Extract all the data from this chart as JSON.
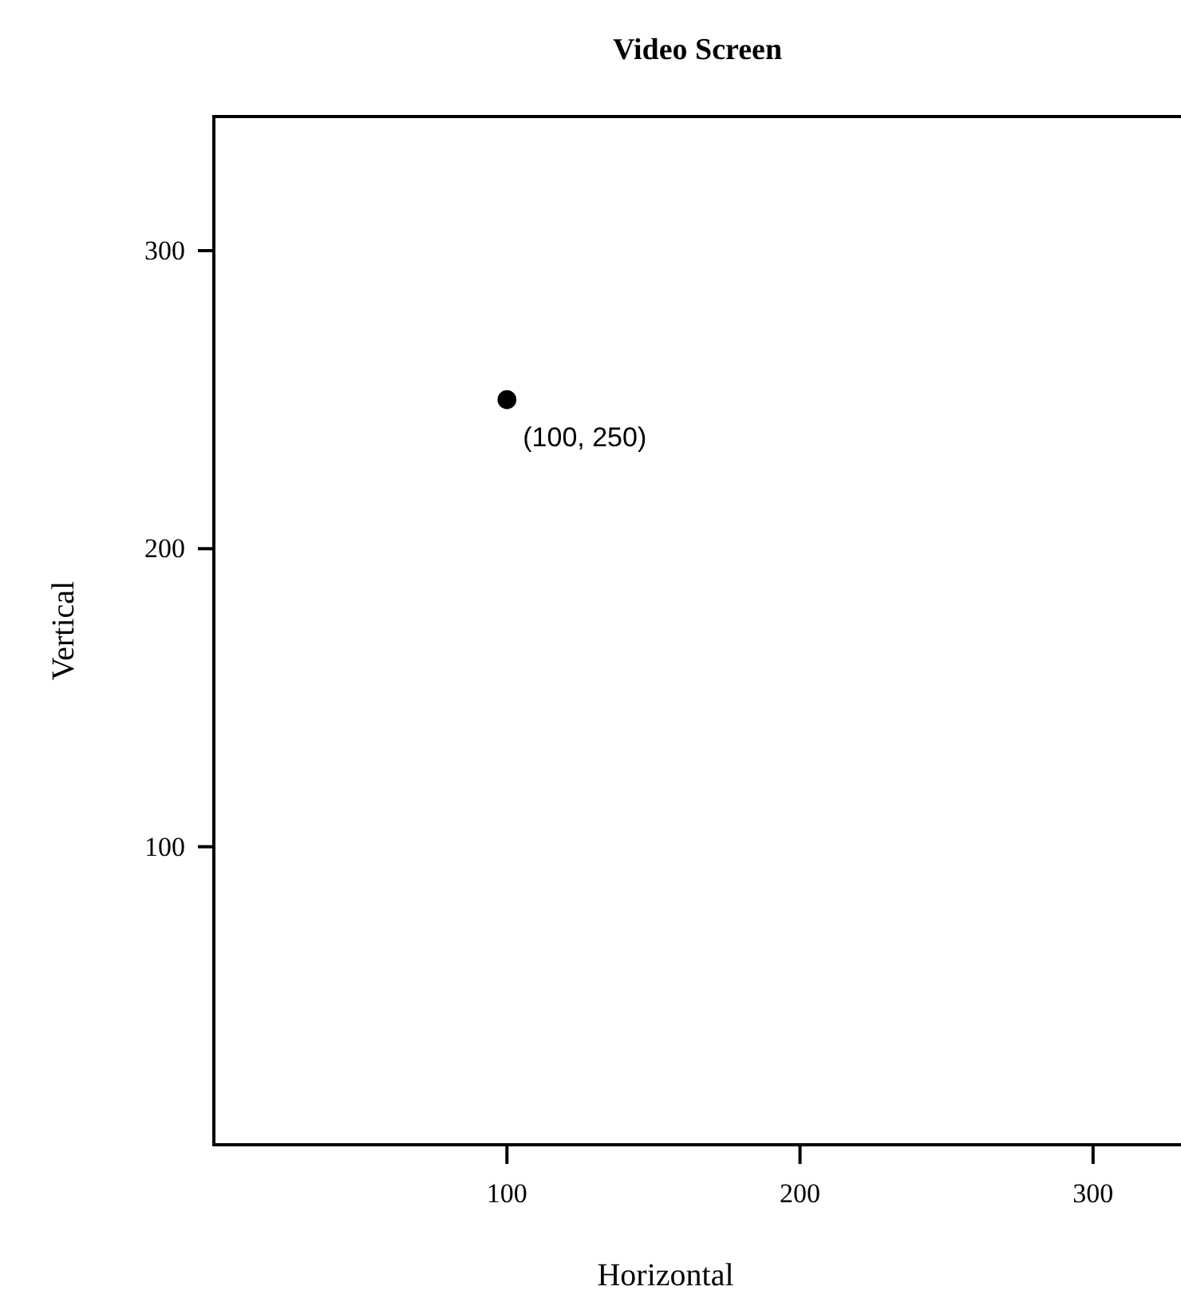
{
  "chart_data": {
    "type": "scatter",
    "title": "Video Screen",
    "xlabel": "Horizontal",
    "ylabel": "Vertical",
    "x": [
      100
    ],
    "values": [
      250
    ],
    "color": "#000000",
    "marker": "circle",
    "xlim": [
      0,
      330
    ],
    "ylim": [
      0,
      345
    ],
    "xticks": [
      100,
      200,
      300
    ],
    "yticks": [
      100,
      200,
      300
    ],
    "grid": false,
    "annotations": [
      {
        "text": "(100, 250)",
        "x": 100,
        "y": 250
      }
    ]
  }
}
